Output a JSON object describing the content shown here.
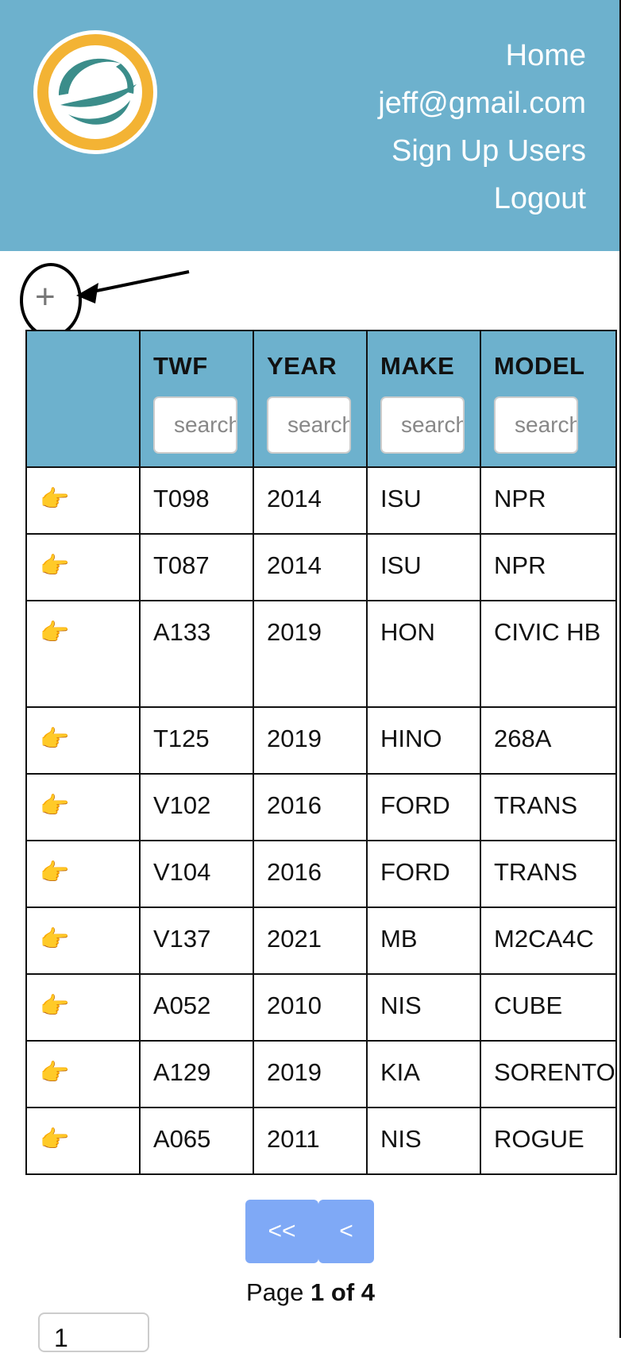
{
  "nav": {
    "home": "Home",
    "user_email": "jeff@gmail.com",
    "sign_up_users": "Sign Up Users",
    "logout": "Logout"
  },
  "add_button": {
    "symbol": "+"
  },
  "table": {
    "columns": [
      {
        "label": "TWF",
        "placeholder": "search"
      },
      {
        "label": "YEAR",
        "placeholder": "search"
      },
      {
        "label": "MAKE",
        "placeholder": "search"
      },
      {
        "label": "MODEL",
        "placeholder": "search"
      }
    ],
    "row_icon": "pointing-hand-icon",
    "row_icon_glyph": "👉",
    "rows": [
      {
        "twf": "T098",
        "year": "2014",
        "make": "ISU",
        "model": "NPR"
      },
      {
        "twf": "T087",
        "year": "2014",
        "make": "ISU",
        "model": "NPR"
      },
      {
        "twf": "A133",
        "year": "2019",
        "make": "HON",
        "model": "CIVIC HB"
      },
      {
        "twf": "T125",
        "year": "2019",
        "make": "HINO",
        "model": "268A"
      },
      {
        "twf": "V102",
        "year": "2016",
        "make": "FORD",
        "model": "TRANS"
      },
      {
        "twf": "V104",
        "year": "2016",
        "make": "FORD",
        "model": "TRANS"
      },
      {
        "twf": "V137",
        "year": "2021",
        "make": "MB",
        "model": "M2CA4C"
      },
      {
        "twf": "A052",
        "year": "2010",
        "make": "NIS",
        "model": "CUBE"
      },
      {
        "twf": "A129",
        "year": "2019",
        "make": "KIA",
        "model": "SORENTO"
      },
      {
        "twf": "A065",
        "year": "2011",
        "make": "NIS",
        "model": "ROGUE"
      }
    ]
  },
  "pagination": {
    "first_label": "<<",
    "prev_label": "<",
    "page_word": "Page",
    "page_status": "1 of 4",
    "current_page": "1"
  },
  "colors": {
    "header_bg": "#6db1cd",
    "pager_button": "#7fa9f6",
    "logo_ring": "#f3b334",
    "logo_teal": "#3b8d8a"
  }
}
